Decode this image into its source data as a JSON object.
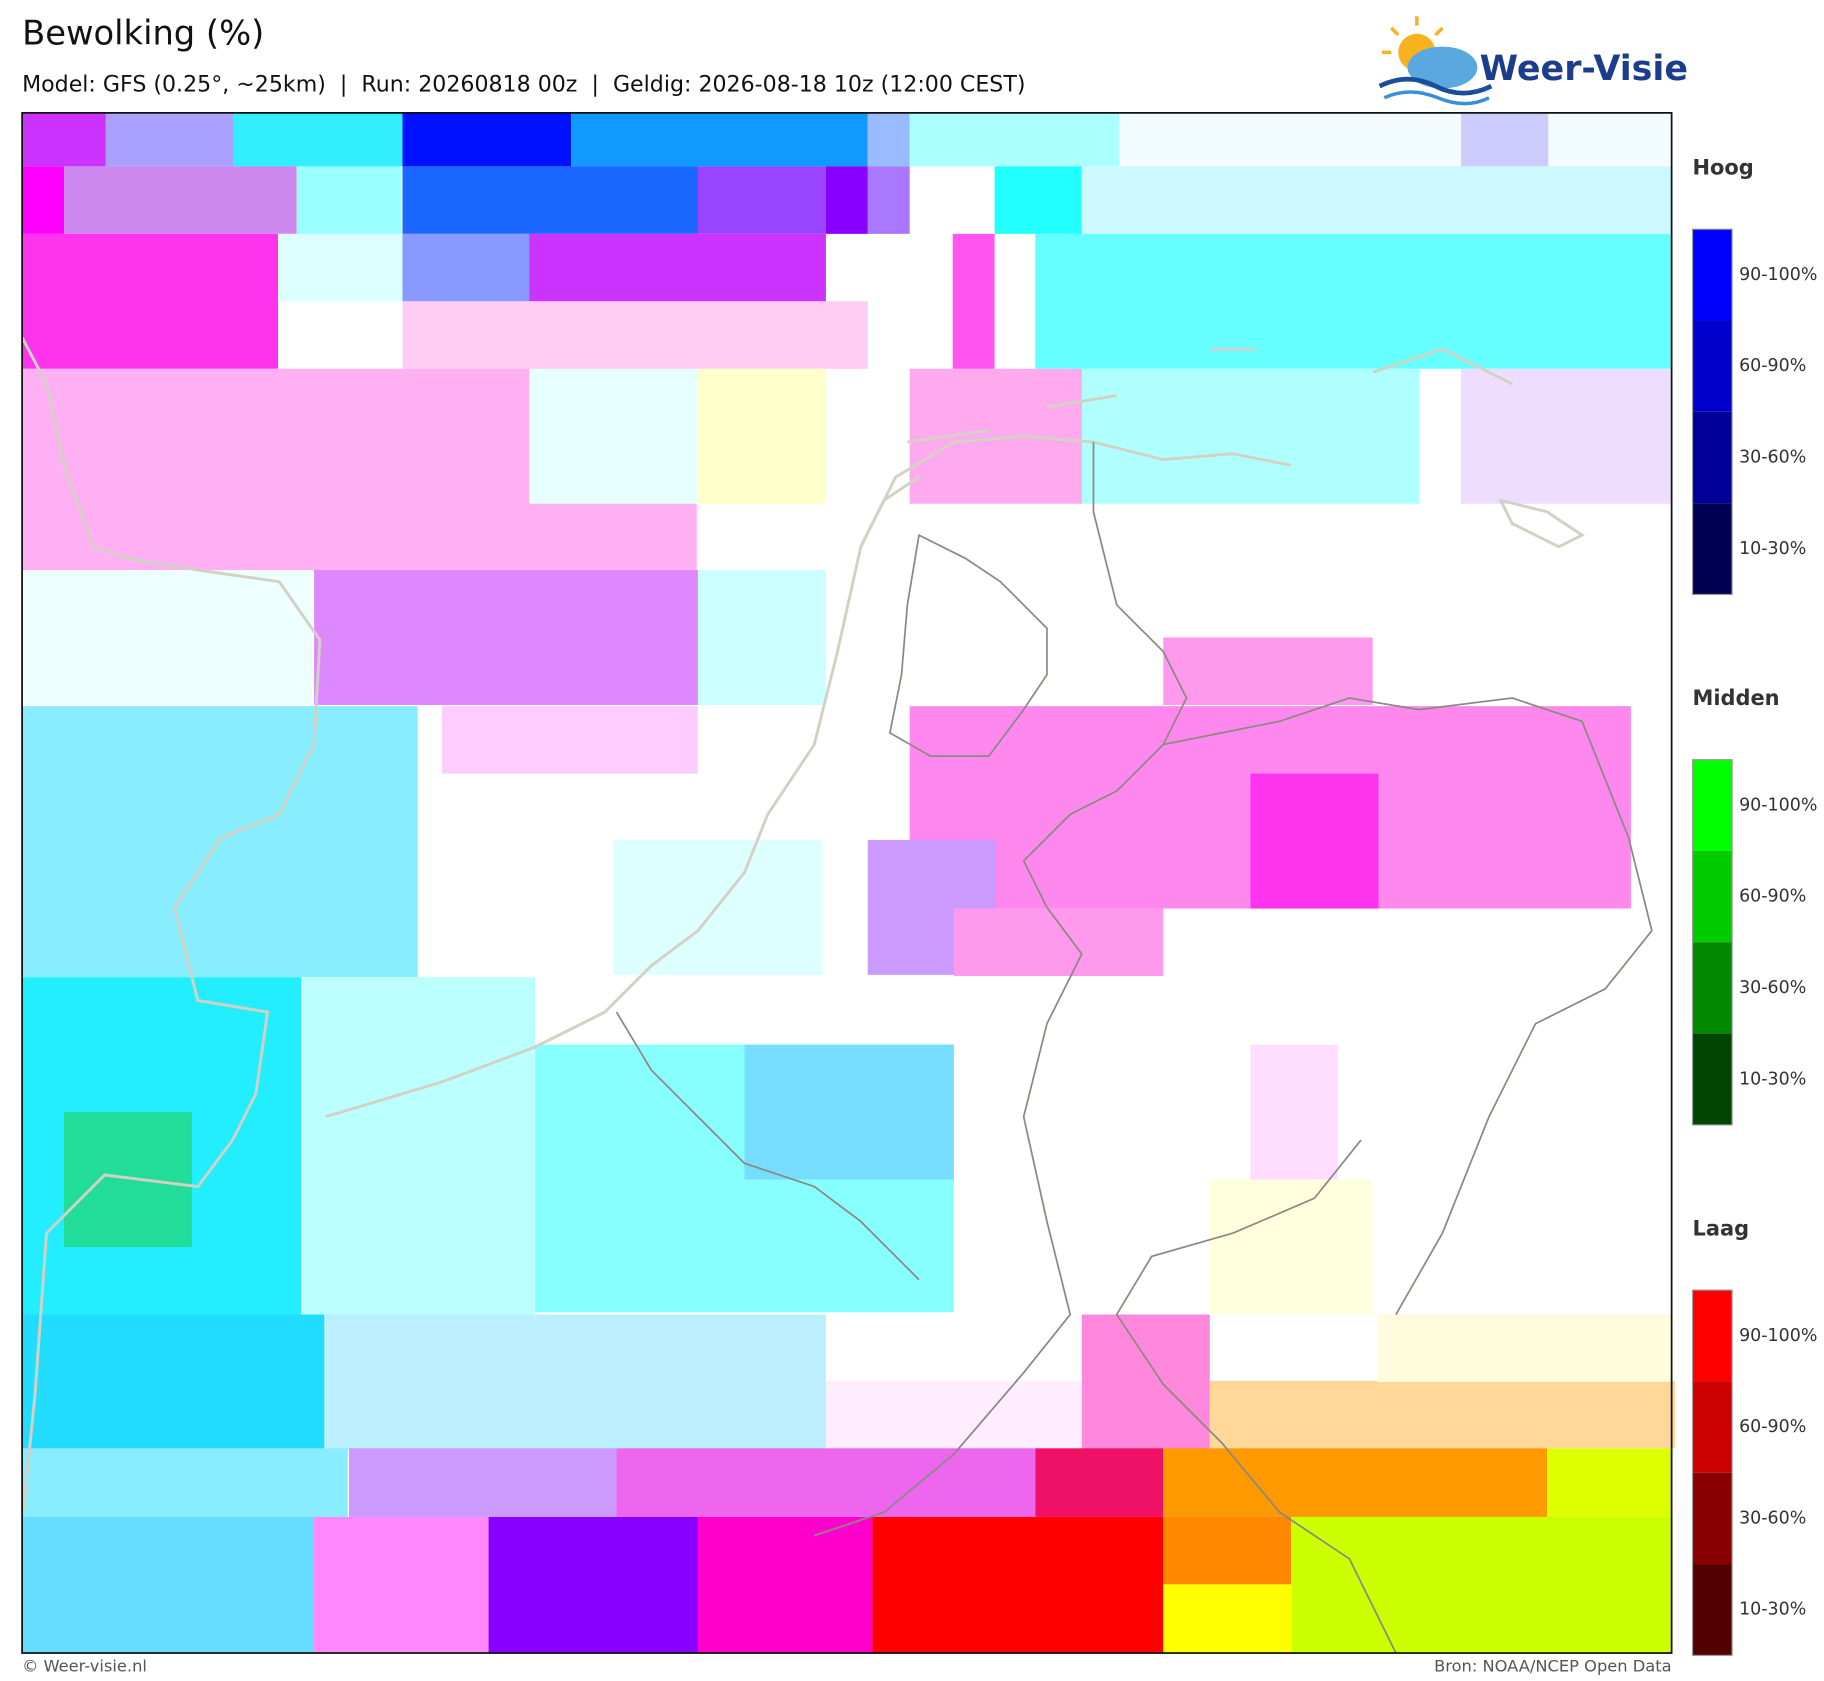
{
  "header": {
    "title": "Bewolking (%)",
    "subtitle": "Model: GFS (0.25°, ~25km)  |  Run: 20260818 00z  |  Geldig: 2026-08-18 10z (12:00 CEST)",
    "logo": "Weer-Visie"
  },
  "legend": [
    {
      "title": "Hoog",
      "labels": [
        "90-100%",
        "60-90%",
        "30-60%",
        "10-30%"
      ],
      "colors": [
        "#0000ff",
        "#0000cc",
        "#000099",
        "#000055"
      ]
    },
    {
      "title": "Midden",
      "labels": [
        "90-100%",
        "60-90%",
        "30-60%",
        "10-30%"
      ],
      "colors": [
        "#00ff00",
        "#00cc00",
        "#008800",
        "#004400"
      ]
    },
    {
      "title": "Laag",
      "labels": [
        "90-100%",
        "60-90%",
        "30-60%",
        "10-30%"
      ],
      "colors": [
        "#ff0000",
        "#cc0000",
        "#880000",
        "#550000"
      ]
    }
  ],
  "footer": {
    "left": "© Weer-visie.nl",
    "right": "Bron: NOAA/NCEP Open Data"
  }
}
